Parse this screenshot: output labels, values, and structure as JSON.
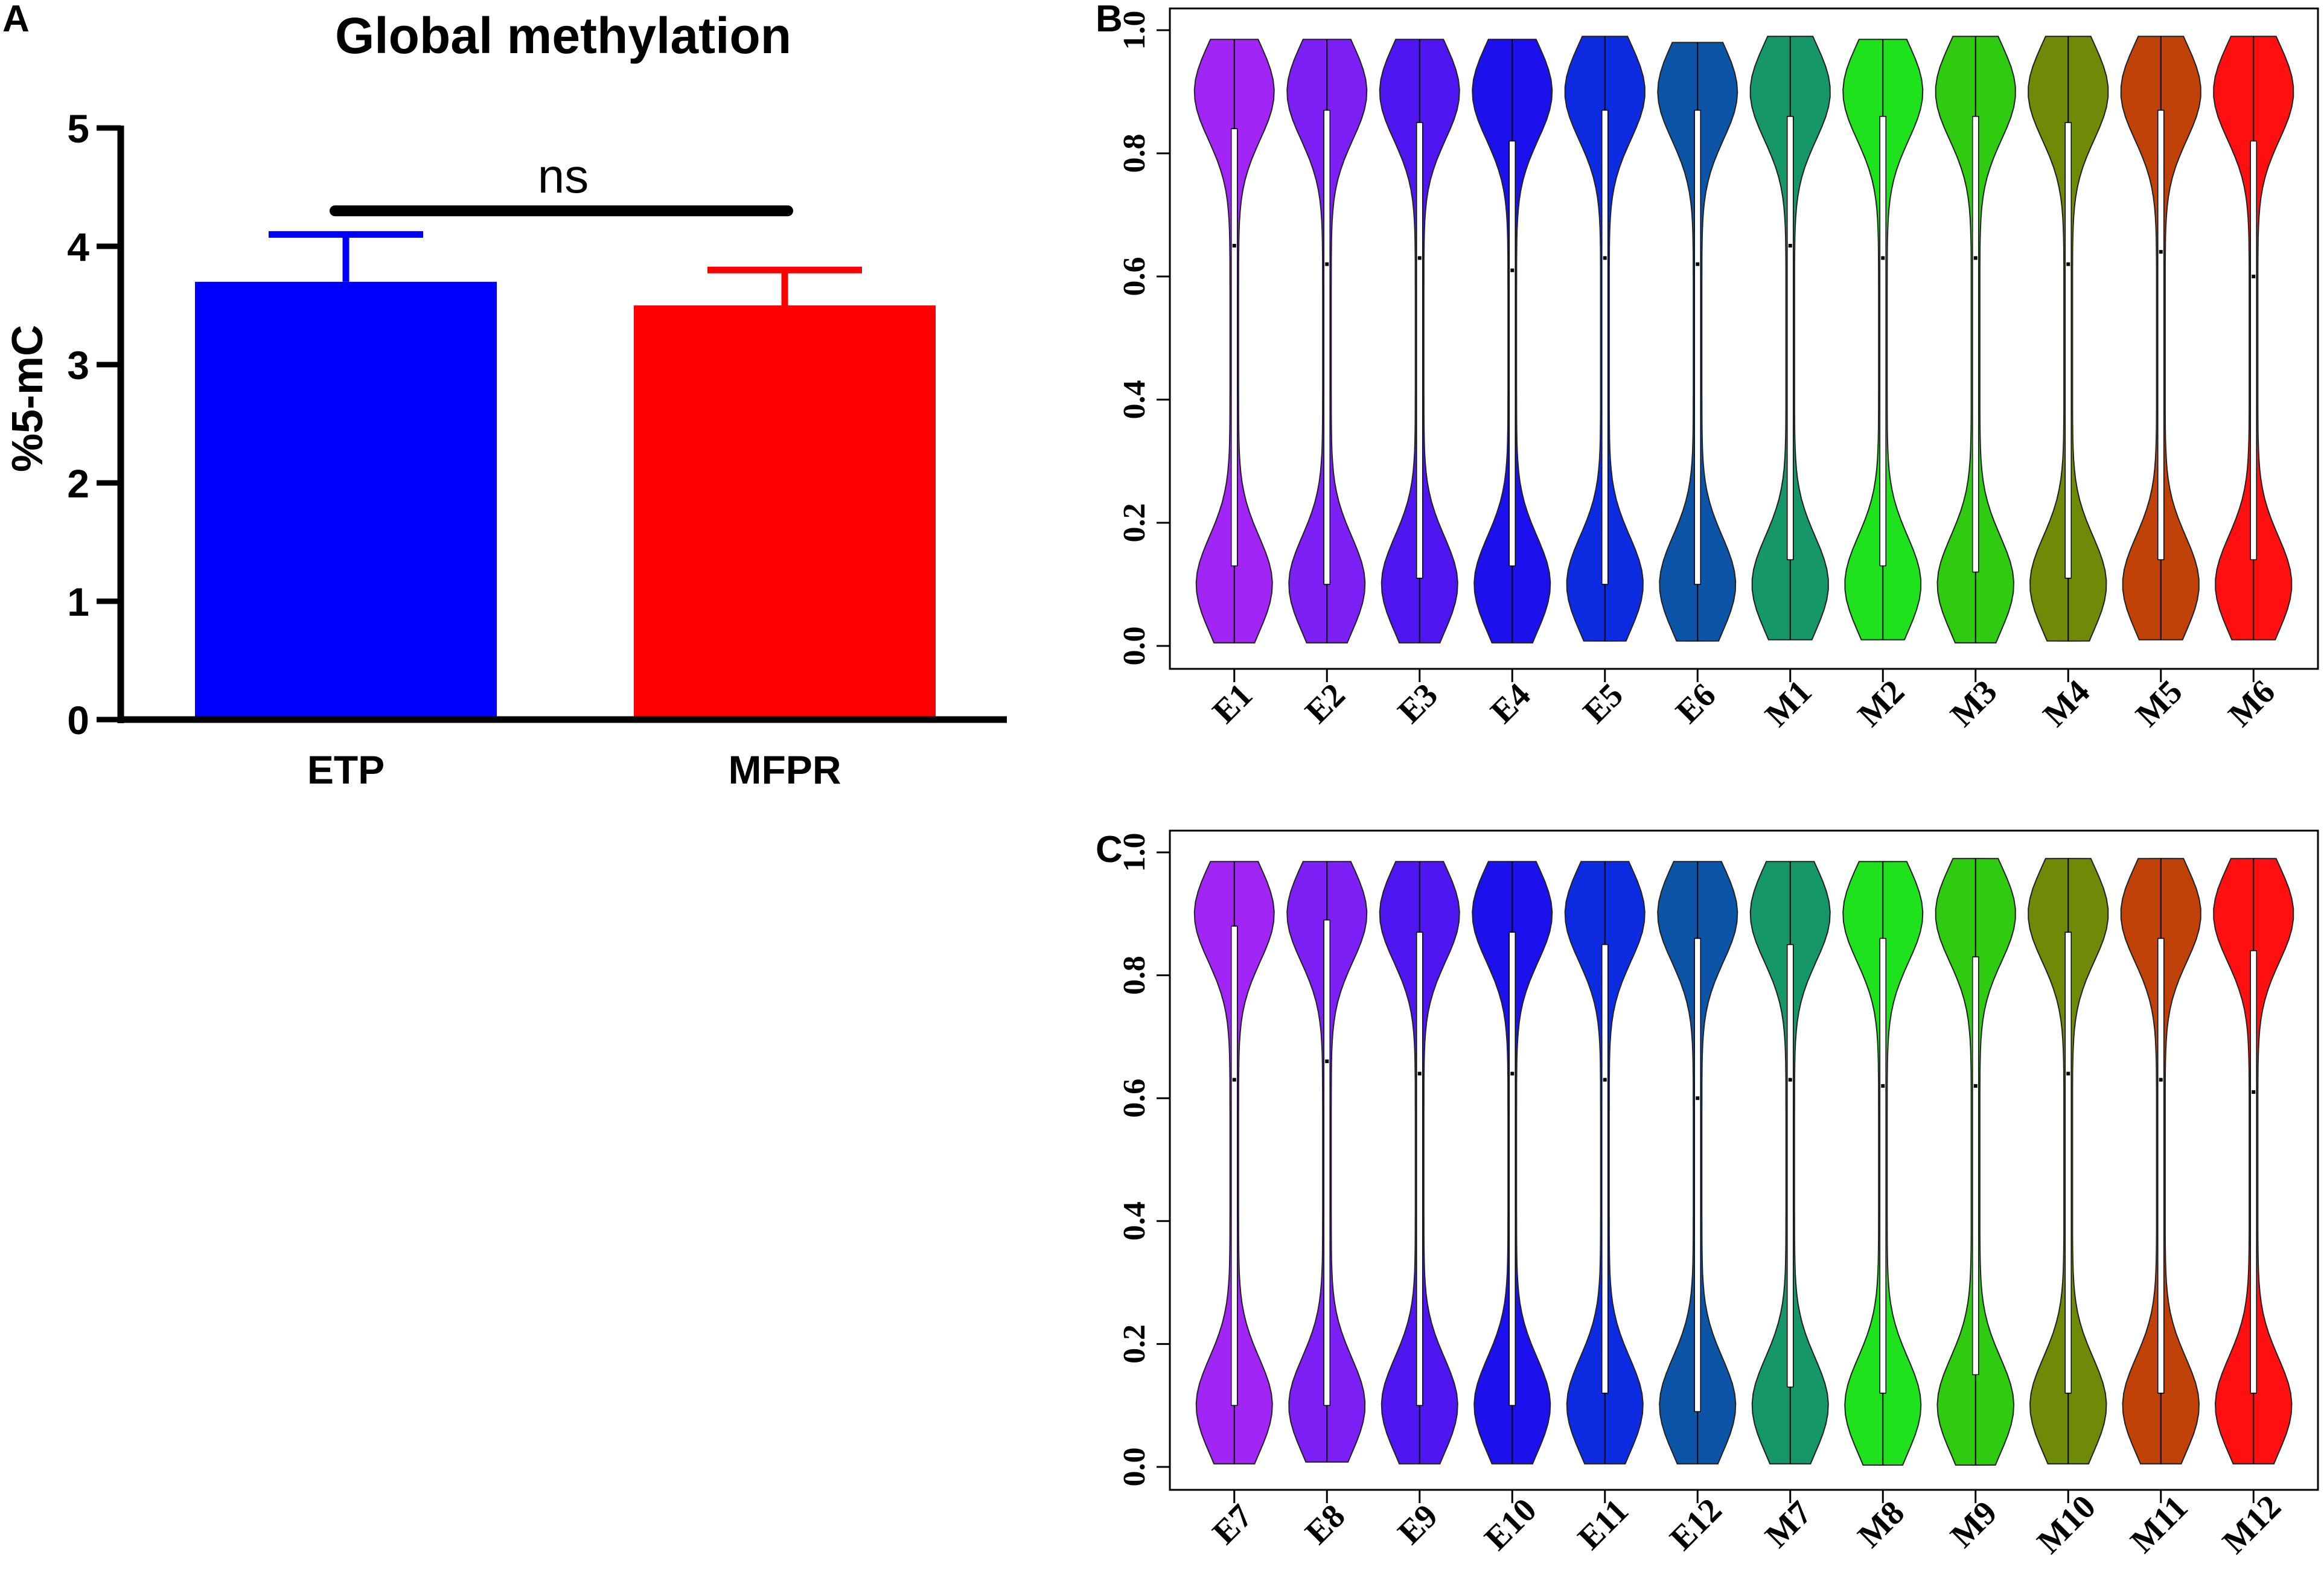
{
  "panel_labels": {
    "a": "A",
    "b": "B",
    "c": "C"
  },
  "colors": {
    "etp": "#0000ff",
    "mfpr": "#ff0000",
    "axis": "#000000",
    "violins": [
      "#a126f5",
      "#7d20f5",
      "#4f16f2",
      "#1c10ec",
      "#0d2be0",
      "#0c55a6",
      "#159768",
      "#1de21c",
      "#2ecb10",
      "#6f8a07",
      "#c14209",
      "#ff0f0f"
    ]
  },
  "chart_data": [
    {
      "id": "A",
      "type": "bar",
      "title": "Global methylation",
      "xlabel": "",
      "ylabel": "%5-mC",
      "ylim": [
        0,
        5
      ],
      "yticks": [
        "0",
        "1",
        "2",
        "3",
        "4",
        "5"
      ],
      "categories": [
        "ETP",
        "MFPR"
      ],
      "values": [
        3.7,
        3.5
      ],
      "error": [
        0.4,
        0.3
      ],
      "significance": {
        "label": "ns",
        "y": 4.3
      }
    },
    {
      "id": "B",
      "type": "violin",
      "ylim": [
        0,
        1
      ],
      "yticks": [
        "0.0",
        "0.2",
        "0.4",
        "0.6",
        "0.8",
        "1.0"
      ],
      "categories": [
        "E1",
        "E2",
        "E3",
        "E4",
        "E5",
        "E6",
        "M1",
        "M2",
        "M3",
        "M4",
        "M5",
        "M6"
      ],
      "medians": [
        0.65,
        0.62,
        0.63,
        0.61,
        0.63,
        0.62,
        0.65,
        0.63,
        0.63,
        0.62,
        0.64,
        0.6
      ],
      "q1": [
        0.13,
        0.1,
        0.11,
        0.13,
        0.1,
        0.1,
        0.14,
        0.13,
        0.12,
        0.11,
        0.14,
        0.14
      ],
      "q3": [
        0.84,
        0.87,
        0.85,
        0.82,
        0.87,
        0.87,
        0.86,
        0.86,
        0.86,
        0.85,
        0.87,
        0.82
      ],
      "min": [
        0.005,
        0.005,
        0.005,
        0.005,
        0.008,
        0.008,
        0.01,
        0.01,
        0.005,
        0.008,
        0.01,
        0.01
      ],
      "max": [
        0.985,
        0.985,
        0.985,
        0.985,
        0.99,
        0.98,
        0.99,
        0.985,
        0.99,
        0.99,
        0.99,
        0.99
      ]
    },
    {
      "id": "C",
      "type": "violin",
      "ylim": [
        0,
        1
      ],
      "yticks": [
        "0.0",
        "0.2",
        "0.4",
        "0.6",
        "0.8",
        "1.0"
      ],
      "categories": [
        "E7",
        "E8",
        "E9",
        "E10",
        "E11",
        "E12",
        "M7",
        "M8",
        "M9",
        "M10",
        "M11",
        "M12"
      ],
      "medians": [
        0.63,
        0.66,
        0.64,
        0.64,
        0.63,
        0.6,
        0.63,
        0.62,
        0.62,
        0.64,
        0.63,
        0.61
      ],
      "q1": [
        0.1,
        0.1,
        0.1,
        0.1,
        0.12,
        0.09,
        0.13,
        0.12,
        0.15,
        0.12,
        0.12,
        0.12
      ],
      "q3": [
        0.88,
        0.89,
        0.87,
        0.87,
        0.85,
        0.86,
        0.85,
        0.86,
        0.83,
        0.87,
        0.86,
        0.84
      ],
      "min": [
        0.005,
        0.008,
        0.005,
        0.005,
        0.005,
        0.005,
        0.005,
        0.003,
        0.003,
        0.005,
        0.005,
        0.005
      ],
      "max": [
        0.985,
        0.985,
        0.985,
        0.985,
        0.985,
        0.985,
        0.985,
        0.985,
        0.99,
        0.99,
        0.99,
        0.99
      ]
    }
  ]
}
